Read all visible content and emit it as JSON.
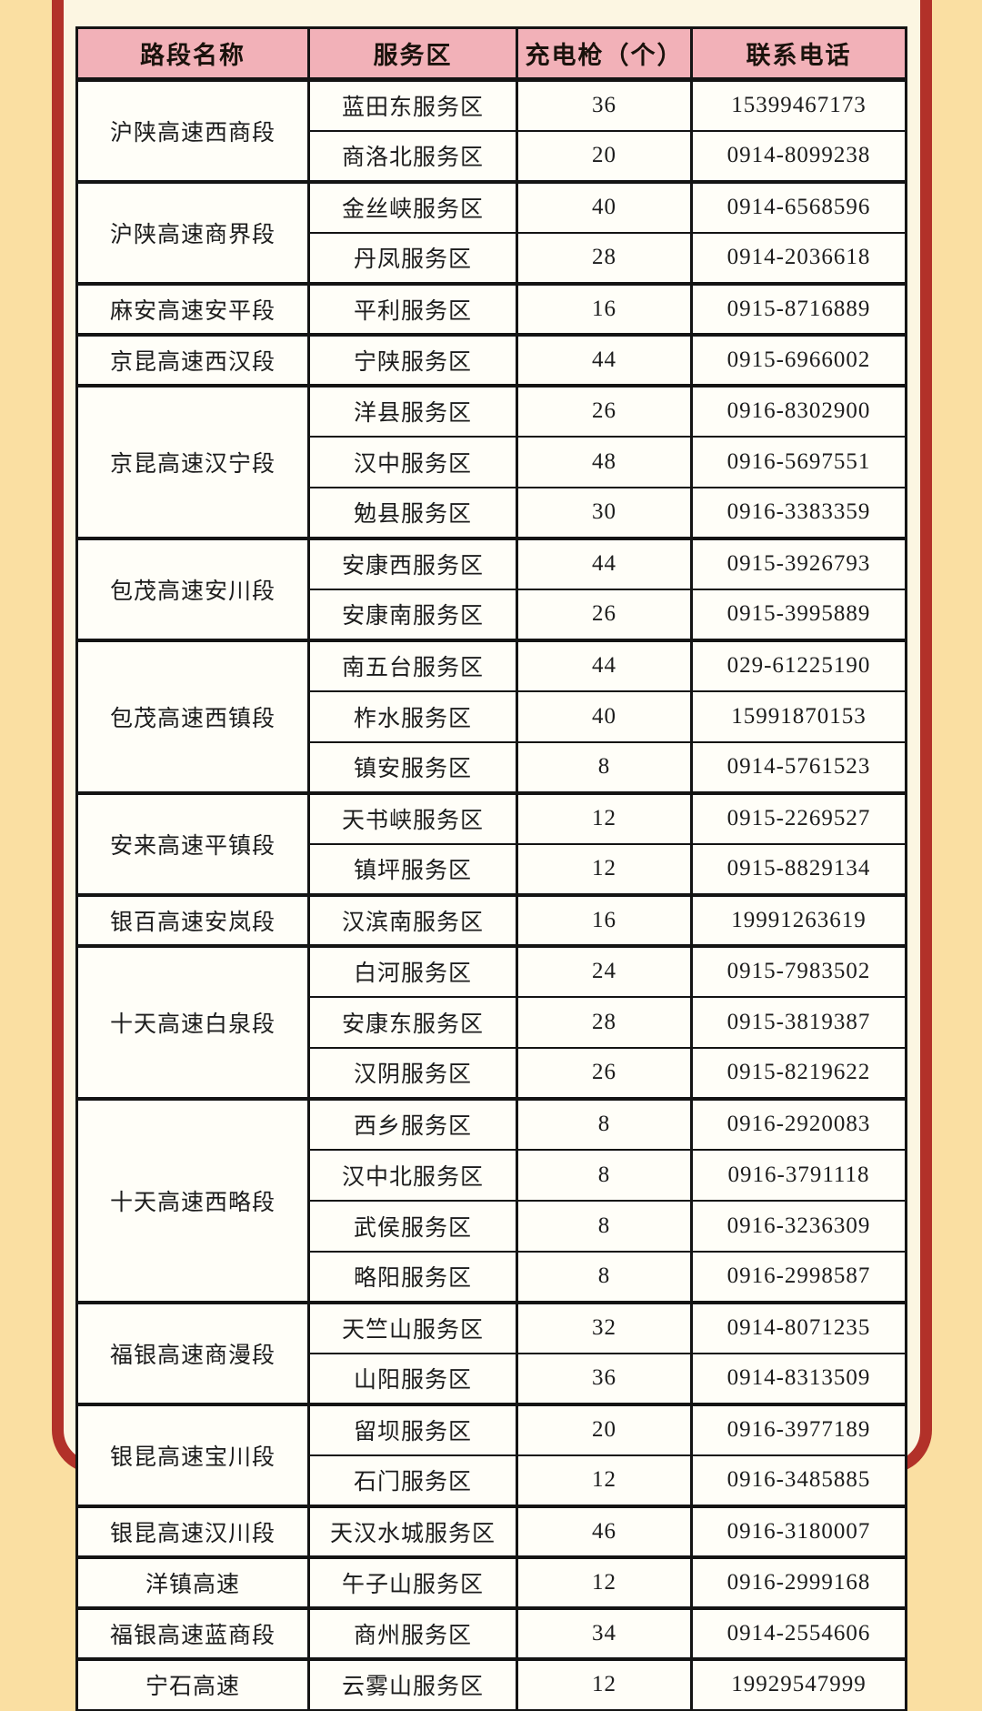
{
  "colors": {
    "page_background": "#fadfa2",
    "frame_red": "#b23129",
    "panel_cream": "#fcf6e2",
    "header_pink": "#f2b1b8",
    "cell_white": "#fffef8",
    "table_border_black": "#141414"
  },
  "table": {
    "columns": [
      "路段名称",
      "服务区",
      "充电枪（个）",
      "联系电话"
    ],
    "groups": [
      {
        "road": "沪陕高速西商段",
        "rows": [
          {
            "area": "蓝田东服务区",
            "guns": 36,
            "phone": "15399467173"
          },
          {
            "area": "商洛北服务区",
            "guns": 20,
            "phone": "0914-8099238"
          }
        ]
      },
      {
        "road": "沪陕高速商界段",
        "rows": [
          {
            "area": "金丝峡服务区",
            "guns": 40,
            "phone": "0914-6568596"
          },
          {
            "area": "丹凤服务区",
            "guns": 28,
            "phone": "0914-2036618"
          }
        ]
      },
      {
        "road": "麻安高速安平段",
        "rows": [
          {
            "area": "平利服务区",
            "guns": 16,
            "phone": "0915-8716889"
          }
        ]
      },
      {
        "road": "京昆高速西汉段",
        "rows": [
          {
            "area": "宁陕服务区",
            "guns": 44,
            "phone": "0915-6966002"
          }
        ]
      },
      {
        "road": "京昆高速汉宁段",
        "rows": [
          {
            "area": "洋县服务区",
            "guns": 26,
            "phone": "0916-8302900"
          },
          {
            "area": "汉中服务区",
            "guns": 48,
            "phone": "0916-5697551"
          },
          {
            "area": "勉县服务区",
            "guns": 30,
            "phone": "0916-3383359"
          }
        ]
      },
      {
        "road": "包茂高速安川段",
        "rows": [
          {
            "area": "安康西服务区",
            "guns": 44,
            "phone": "0915-3926793"
          },
          {
            "area": "安康南服务区",
            "guns": 26,
            "phone": "0915-3995889"
          }
        ]
      },
      {
        "road": "包茂高速西镇段",
        "rows": [
          {
            "area": "南五台服务区",
            "guns": 44,
            "phone": "029-61225190"
          },
          {
            "area": "柞水服务区",
            "guns": 40,
            "phone": "15991870153"
          },
          {
            "area": "镇安服务区",
            "guns": 8,
            "phone": "0914-5761523"
          }
        ]
      },
      {
        "road": "安来高速平镇段",
        "rows": [
          {
            "area": "天书峡服务区",
            "guns": 12,
            "phone": "0915-2269527"
          },
          {
            "area": "镇坪服务区",
            "guns": 12,
            "phone": "0915-8829134"
          }
        ]
      },
      {
        "road": "银百高速安岚段",
        "rows": [
          {
            "area": "汉滨南服务区",
            "guns": 16,
            "phone": "19991263619"
          }
        ]
      },
      {
        "road": "十天高速白泉段",
        "rows": [
          {
            "area": "白河服务区",
            "guns": 24,
            "phone": "0915-7983502"
          },
          {
            "area": "安康东服务区",
            "guns": 28,
            "phone": "0915-3819387"
          },
          {
            "area": "汉阴服务区",
            "guns": 26,
            "phone": "0915-8219622"
          }
        ]
      },
      {
        "road": "十天高速西略段",
        "rows": [
          {
            "area": "西乡服务区",
            "guns": 8,
            "phone": "0916-2920083"
          },
          {
            "area": "汉中北服务区",
            "guns": 8,
            "phone": "0916-3791118"
          },
          {
            "area": "武侯服务区",
            "guns": 8,
            "phone": "0916-3236309"
          },
          {
            "area": "略阳服务区",
            "guns": 8,
            "phone": "0916-2998587"
          }
        ]
      },
      {
        "road": "福银高速商漫段",
        "rows": [
          {
            "area": "天竺山服务区",
            "guns": 32,
            "phone": "0914-8071235"
          },
          {
            "area": "山阳服务区",
            "guns": 36,
            "phone": "0914-8313509"
          }
        ]
      },
      {
        "road": "银昆高速宝川段",
        "rows": [
          {
            "area": "留坝服务区",
            "guns": 20,
            "phone": "0916-3977189"
          },
          {
            "area": "石门服务区",
            "guns": 12,
            "phone": "0916-3485885"
          }
        ]
      },
      {
        "road": "银昆高速汉川段",
        "rows": [
          {
            "area": "天汉水城服务区",
            "guns": 46,
            "phone": "0916-3180007"
          }
        ]
      },
      {
        "road": "洋镇高速",
        "rows": [
          {
            "area": "午子山服务区",
            "guns": 12,
            "phone": "0916-2999168"
          }
        ]
      },
      {
        "road": "福银高速蓝商段",
        "rows": [
          {
            "area": "商州服务区",
            "guns": 34,
            "phone": "0914-2554606"
          }
        ]
      },
      {
        "road": "宁石高速",
        "rows": [
          {
            "area": "云雾山服务区",
            "guns": 12,
            "phone": "19929547999"
          }
        ]
      }
    ]
  }
}
